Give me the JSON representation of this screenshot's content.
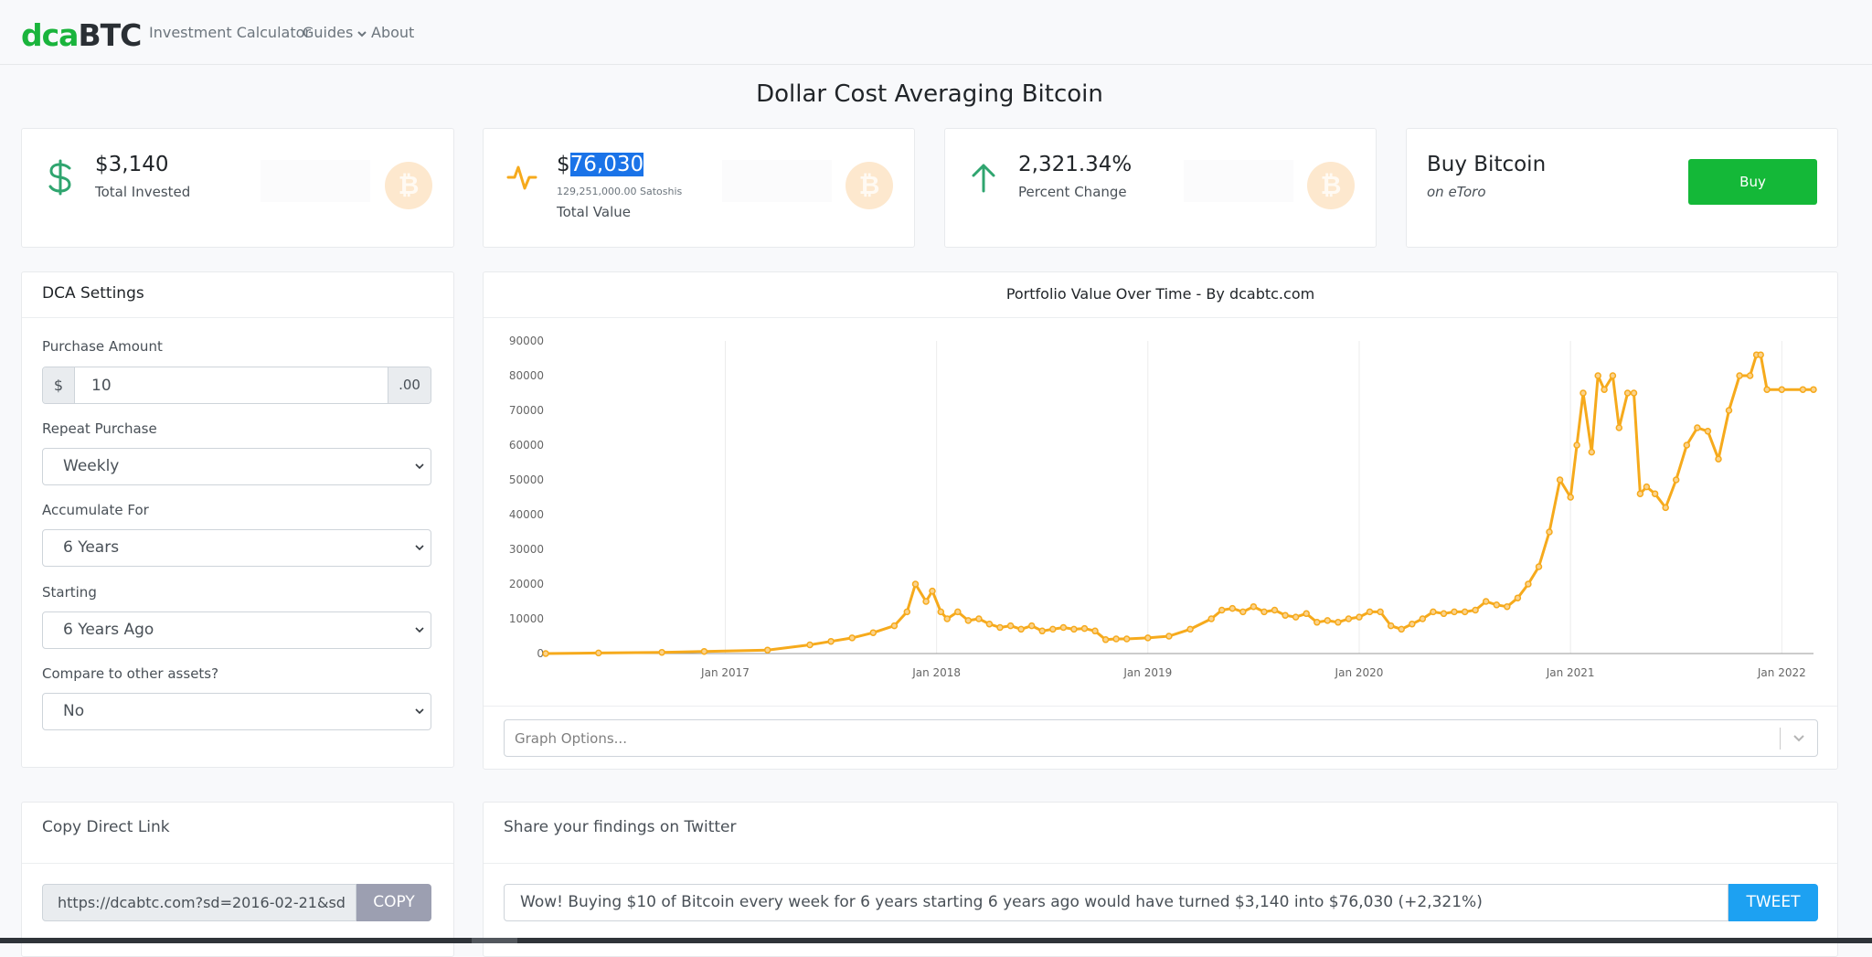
{
  "brand": {
    "logo_part1": "dca",
    "logo_part2": "BTC",
    "colors": {
      "green": "#1ab43c",
      "orange": "#f6aa1c",
      "blue": "#1da1f2"
    }
  },
  "nav": {
    "investment_calculator": "Investment Calculator",
    "guides": "Guides",
    "about": "About"
  },
  "page": {
    "title": "Dollar Cost Averaging Bitcoin"
  },
  "stats": {
    "invested": {
      "value": "$3,140",
      "label": "Total Invested",
      "icon": "dollar-icon"
    },
    "value": {
      "currency": "$",
      "amount": "76,030",
      "satoshis": "129,251,000.00 Satoshis",
      "label": "Total Value",
      "icon": "activity-icon"
    },
    "change": {
      "value": "2,321.34%",
      "label": "Percent Change",
      "icon": "arrow-up-icon"
    },
    "buy": {
      "title": "Buy Bitcoin",
      "subtitle": "on eToro",
      "button": "Buy"
    }
  },
  "settings": {
    "header": "DCA Settings",
    "purchase_amount_label": "Purchase Amount",
    "currency_prefix": "$",
    "purchase_amount_value": "10",
    "cents_suffix": ".00",
    "repeat_label": "Repeat Purchase",
    "repeat_value": "Weekly",
    "accumulate_label": "Accumulate For",
    "accumulate_value": "6 Years",
    "starting_label": "Starting",
    "starting_value": "6 Years Ago",
    "compare_label": "Compare to other assets?",
    "compare_value": "No"
  },
  "chart_panel": {
    "title": "Portfolio Value Over Time - By dcabtc.com",
    "graph_options_placeholder": "Graph Options..."
  },
  "chart_data": {
    "type": "line",
    "title": "Portfolio Value Over Time - By dcabtc.com",
    "xlabel": "",
    "ylabel": "",
    "ylim": [
      0,
      90000
    ],
    "yticks": [
      0,
      10000,
      20000,
      30000,
      40000,
      50000,
      60000,
      70000,
      80000,
      90000
    ],
    "ytick_labels": [
      "0",
      "10000",
      "20000",
      "30000",
      "40000",
      "50000",
      "60000",
      "70000",
      "80000",
      "90000"
    ],
    "xticks": [
      "Jan 2017",
      "Jan 2018",
      "Jan 2019",
      "Jan 2020",
      "Jan 2021",
      "Jan 2022"
    ],
    "xlim": [
      2016.15,
      2022.15
    ],
    "grid": true,
    "series": [
      {
        "color": "#f6aa1c",
        "x": [
          2016.15,
          2016.4,
          2016.7,
          2016.9,
          2017.2,
          2017.4,
          2017.5,
          2017.6,
          2017.7,
          2017.8,
          2017.86,
          2017.9,
          2017.95,
          2017.98,
          2018.02,
          2018.05,
          2018.1,
          2018.15,
          2018.2,
          2018.25,
          2018.3,
          2018.35,
          2018.4,
          2018.45,
          2018.5,
          2018.55,
          2018.6,
          2018.65,
          2018.7,
          2018.75,
          2018.8,
          2018.85,
          2018.9,
          2019.0,
          2019.1,
          2019.2,
          2019.3,
          2019.35,
          2019.4,
          2019.45,
          2019.5,
          2019.55,
          2019.6,
          2019.65,
          2019.7,
          2019.75,
          2019.8,
          2019.85,
          2019.9,
          2019.95,
          2020.0,
          2020.05,
          2020.1,
          2020.15,
          2020.2,
          2020.25,
          2020.3,
          2020.35,
          2020.4,
          2020.45,
          2020.5,
          2020.55,
          2020.6,
          2020.65,
          2020.7,
          2020.75,
          2020.8,
          2020.85,
          2020.9,
          2020.95,
          2021.0,
          2021.03,
          2021.06,
          2021.1,
          2021.13,
          2021.16,
          2021.2,
          2021.23,
          2021.27,
          2021.3,
          2021.33,
          2021.36,
          2021.4,
          2021.45,
          2021.5,
          2021.55,
          2021.6,
          2021.65,
          2021.7,
          2021.75,
          2021.8,
          2021.85,
          2021.88,
          2021.9,
          2021.93,
          2022.0,
          2022.1,
          2022.15
        ],
        "y": [
          0,
          150,
          350,
          600,
          1000,
          2500,
          3500,
          4500,
          6000,
          8000,
          12000,
          20000,
          15000,
          18000,
          12000,
          10000,
          12000,
          9500,
          10000,
          8500,
          7500,
          8000,
          7000,
          8000,
          6500,
          7000,
          7500,
          7000,
          7200,
          6500,
          4000,
          4200,
          4200,
          4500,
          5000,
          7000,
          10000,
          12500,
          13000,
          12000,
          13500,
          12000,
          12500,
          11000,
          10500,
          11500,
          9000,
          9500,
          9000,
          10000,
          10500,
          12000,
          12000,
          8000,
          7000,
          8500,
          10000,
          12000,
          11500,
          12000,
          12000,
          12500,
          15000,
          14000,
          13500,
          16000,
          20000,
          25000,
          35000,
          50000,
          45000,
          60000,
          75000,
          58000,
          80000,
          76000,
          80000,
          65000,
          75000,
          75000,
          46000,
          48000,
          46000,
          42000,
          50000,
          60000,
          65000,
          64000,
          56000,
          70000,
          80000,
          80000,
          86000,
          86000,
          76000,
          76000,
          76000,
          76000
        ]
      }
    ]
  },
  "link_card": {
    "header": "Copy Direct Link",
    "url": "https://dcabtc.com?sd=2016-02-21&sd",
    "copy_button": "COPY"
  },
  "share_card": {
    "header": "Share your findings on Twitter",
    "tweet_text": "Wow! Buying $10 of Bitcoin every week for 6 years starting 6 years ago would have turned $3,140 into $76,030 (+2,321%)",
    "tweet_button": "TWEET"
  }
}
